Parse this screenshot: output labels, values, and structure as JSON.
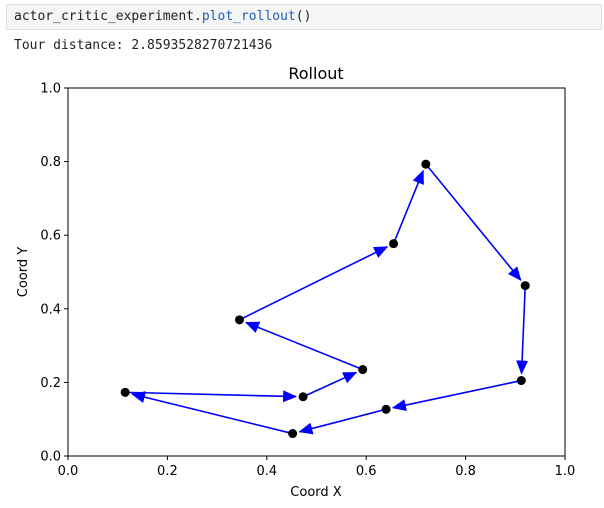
{
  "cell": {
    "code_object": "actor_critic_experiment.",
    "code_method": "plot_rollout",
    "code_call": "()"
  },
  "output": {
    "text": "Tour distance: 2.8593528270721436"
  },
  "chart_data": {
    "type": "scatter",
    "title": "Rollout",
    "xlabel": "Coord X",
    "ylabel": "Coord Y",
    "xlim": [
      0.0,
      1.0
    ],
    "ylim": [
      0.0,
      1.0
    ],
    "xticks": [
      0.0,
      0.2,
      0.4,
      0.6,
      0.8,
      1.0
    ],
    "yticks": [
      0.0,
      0.2,
      0.4,
      0.6,
      0.8,
      1.0
    ],
    "tick_labels": [
      "0.0",
      "0.2",
      "0.4",
      "0.6",
      "0.8",
      "1.0"
    ],
    "grid": false,
    "point_color": "#000000",
    "arrow_color": "#0000ff",
    "points": [
      {
        "x": 0.115,
        "y": 0.173
      },
      {
        "x": 0.473,
        "y": 0.161
      },
      {
        "x": 0.593,
        "y": 0.235
      },
      {
        "x": 0.345,
        "y": 0.37
      },
      {
        "x": 0.655,
        "y": 0.577
      },
      {
        "x": 0.72,
        "y": 0.793
      },
      {
        "x": 0.92,
        "y": 0.463
      },
      {
        "x": 0.912,
        "y": 0.205
      },
      {
        "x": 0.64,
        "y": 0.127
      },
      {
        "x": 0.452,
        "y": 0.061
      }
    ],
    "tour_order": [
      0,
      1,
      2,
      3,
      4,
      5,
      6,
      7,
      8,
      9,
      0
    ]
  }
}
